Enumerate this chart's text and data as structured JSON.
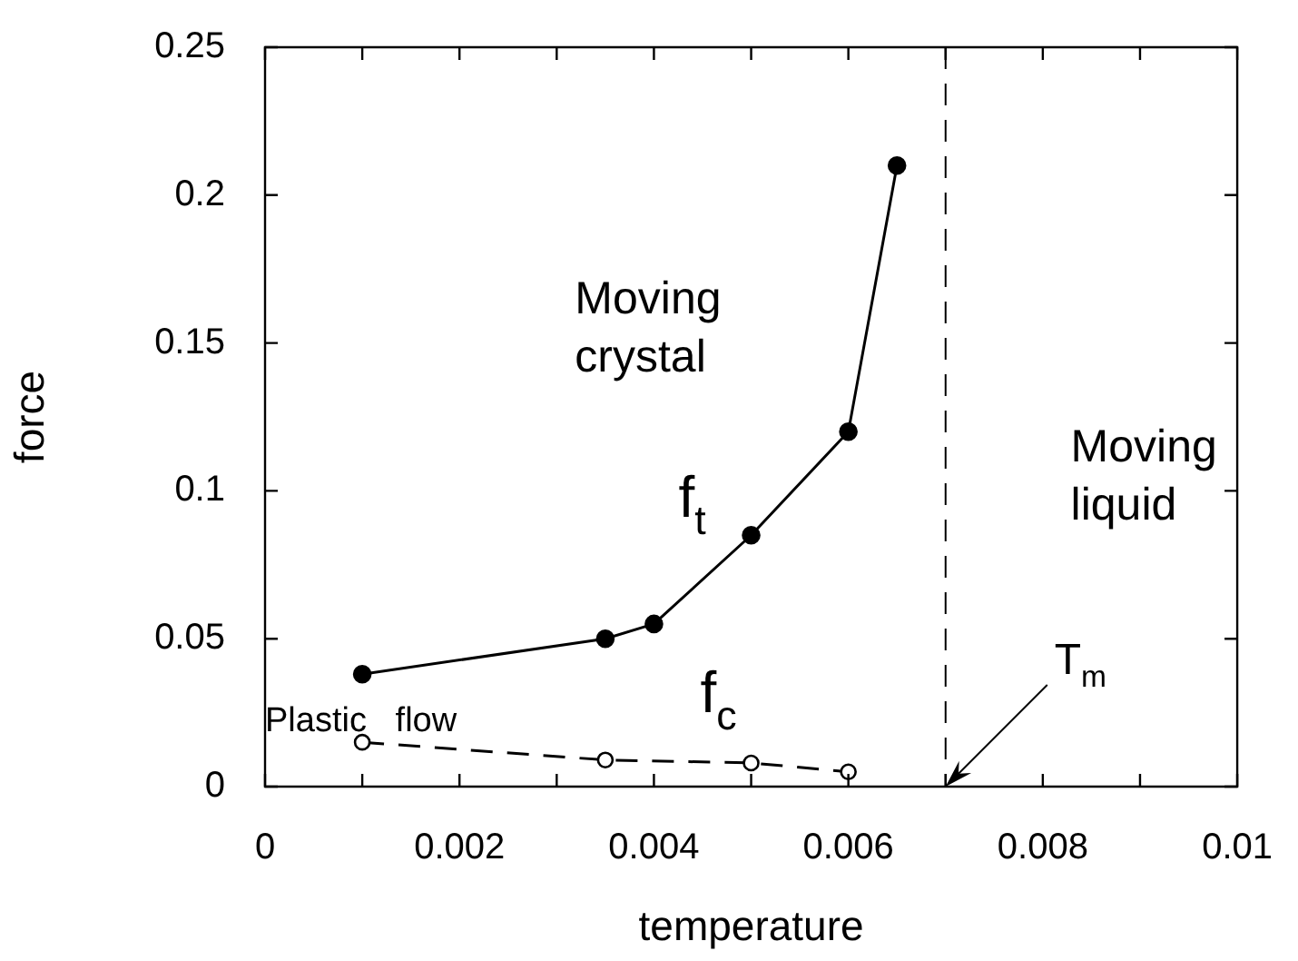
{
  "chart_data": {
    "type": "line",
    "xlabel": "temperature",
    "ylabel": "force",
    "xlim": [
      0,
      0.01
    ],
    "xticks": [
      0,
      {
        "value": 0.001,
        "label": null
      },
      0.002,
      {
        "value": 0.003,
        "label": null
      },
      0.004,
      {
        "value": 0.005,
        "label": null
      },
      0.006,
      {
        "value": 0.007,
        "label": null
      },
      0.008,
      {
        "value": 0.009,
        "label": null
      },
      0.01
    ],
    "ylim": [
      0,
      0.25
    ],
    "yticks": [
      0,
      0.05,
      0.1,
      0.15,
      0.2,
      0.25
    ],
    "grid": false,
    "legend": false,
    "series": [
      {
        "name": "f$_{t}$",
        "color": "#000000",
        "x": [
          0.001,
          0.0035,
          0.004,
          0.005,
          0.006,
          0.0065
        ],
        "values": [
          0.038,
          0.05,
          0.055,
          0.085,
          0.12,
          0.21
        ],
        "marker": "circle",
        "line_style": "solid"
      },
      {
        "name": "f$_{c}$",
        "color": "#000000",
        "x": [
          0.001,
          0.0035,
          0.005,
          0.006
        ],
        "values": [
          0.015,
          0.009,
          0.008,
          0.005
        ],
        "marker": "circle",
        "line_style": "dashed"
      }
    ],
    "ref_lines": [
      {
        "axis": "x",
        "value": 0.007,
        "line_style": "dashed",
        "color": "#000000"
      }
    ],
    "annotations": [
      "Moving crystal",
      "Moving liquid",
      "Plastic flow",
      {
        "text": "T$_{m}$",
        "x": 0.007,
        "y": 0
      }
    ]
  }
}
